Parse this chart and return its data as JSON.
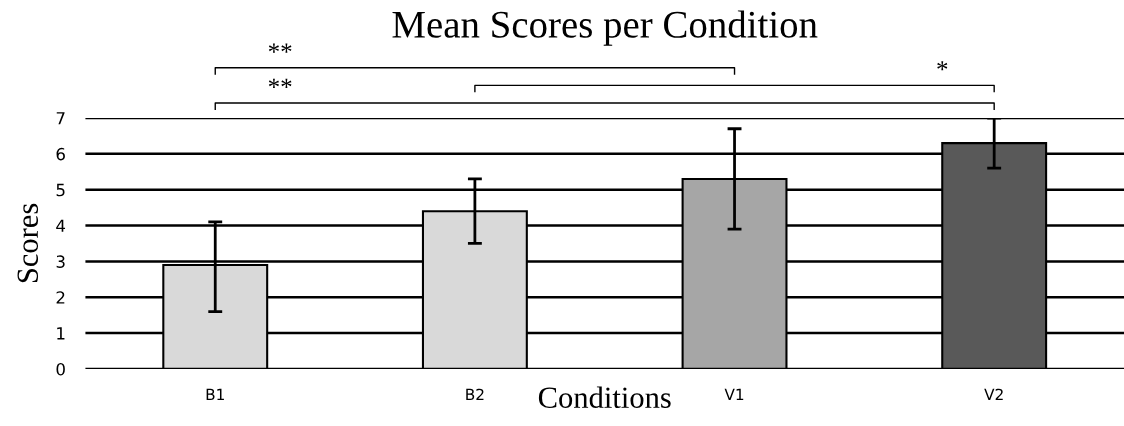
{
  "chart_data": {
    "type": "bar",
    "title": "Mean Scores per Condition",
    "xlabel": "Conditions",
    "ylabel": "Scores",
    "categories": [
      "B1",
      "B2",
      "V1",
      "V2"
    ],
    "values": [
      2.9,
      4.4,
      5.3,
      6.3
    ],
    "errors": [
      [
        1.6,
        4.1
      ],
      [
        3.5,
        5.3
      ],
      [
        3.9,
        6.7
      ],
      [
        5.6,
        7.0
      ]
    ],
    "colors": [
      "#d9d9d9",
      "#d9d9d9",
      "#a6a6a6",
      "#595959"
    ],
    "ylim": [
      0,
      7
    ],
    "yticks": [
      0,
      1,
      2,
      3,
      4,
      5,
      6,
      7
    ],
    "grid": "y",
    "annotations": [
      "**",
      "*",
      "**"
    ]
  }
}
